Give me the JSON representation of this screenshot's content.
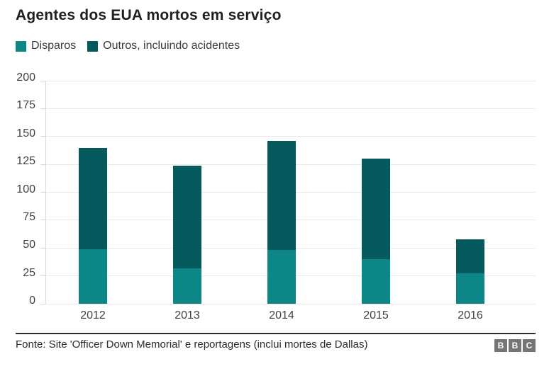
{
  "title": "Agentes dos EUA mortos em serviço",
  "chart_data": {
    "type": "bar",
    "stacked": true,
    "title": "Agentes dos EUA mortos em serviço",
    "categories": [
      "2012",
      "2013",
      "2014",
      "2015",
      "2016"
    ],
    "series": [
      {
        "name": "Disparos",
        "color": "#0c8686",
        "values": [
          49,
          32,
          48,
          40,
          27
        ]
      },
      {
        "name": "Outros, incluindo acidentes",
        "color": "#045a5c",
        "values": [
          91,
          92,
          98,
          90,
          31
        ]
      }
    ],
    "totals": [
      140,
      124,
      146,
      130,
      58
    ],
    "xlabel": "",
    "ylabel": "",
    "ylim": [
      0,
      200
    ],
    "yticks": [
      0,
      25,
      50,
      75,
      100,
      125,
      150,
      175,
      200
    ],
    "grid": true,
    "legend_position": "top-left"
  },
  "footer": {
    "source": "Fonte: Site 'Officer Down Memorial' e reportagens (inclui mortes de Dallas)"
  },
  "logo": {
    "letters": [
      "B",
      "B",
      "C"
    ],
    "bg_color": "#757575",
    "text_color": "#ffffff"
  },
  "colors": {
    "title_text": "#1f1f1f",
    "axis_text": "#404040",
    "grid_line": "#e8e8e8",
    "axis_line": "#d9d9d9",
    "separator": "#2e2e2e",
    "background": "#ffffff"
  }
}
